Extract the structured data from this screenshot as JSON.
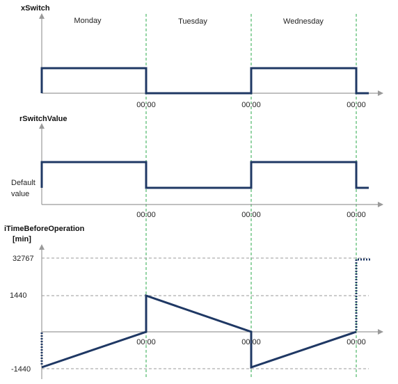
{
  "signals": [
    {
      "name": "xSwitch"
    },
    {
      "name": "rSwitchValue",
      "level_label": "Default value"
    },
    {
      "name": "iTimeBeforeOperation",
      "unit": "[min]",
      "tick_labels": [
        "32767",
        "1440",
        "-1440"
      ]
    }
  ],
  "days": [
    "Monday",
    "Tuesday",
    "Wednesday"
  ],
  "time_marker": "00:00"
}
